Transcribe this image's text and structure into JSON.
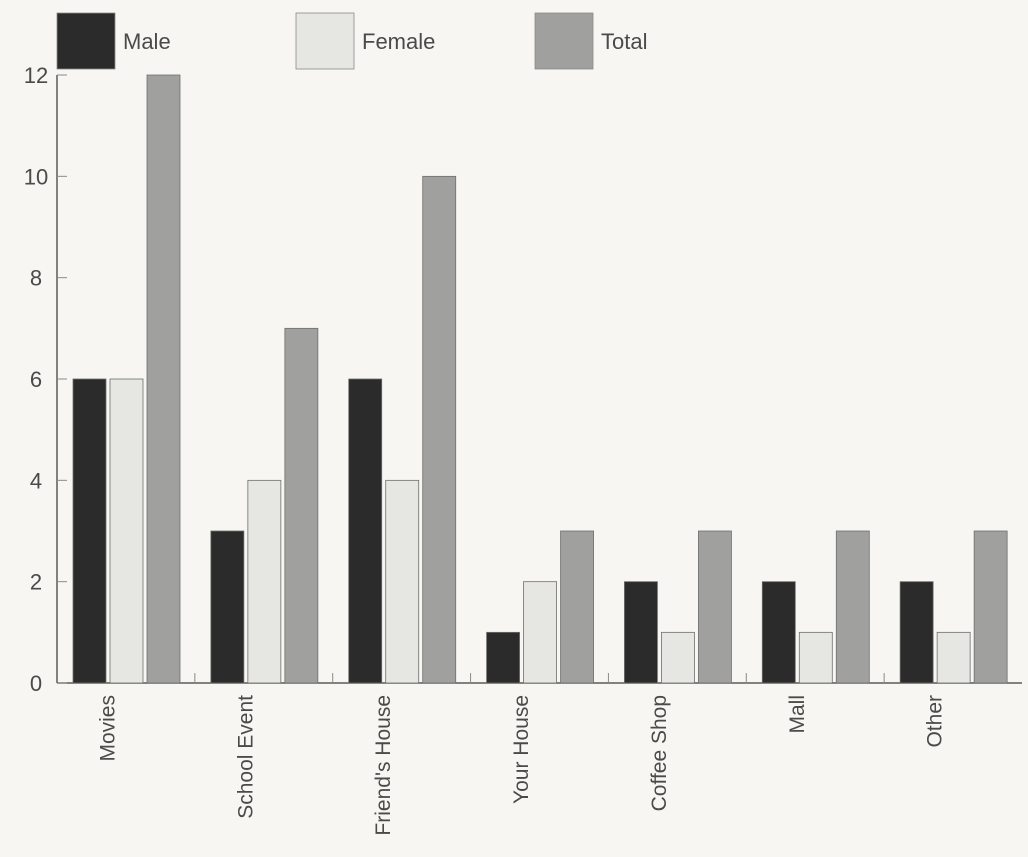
{
  "chart_data": {
    "type": "bar",
    "categories": [
      "Movies",
      "School Event",
      "Friend's House",
      "Your House",
      "Coffee Shop",
      "Mall",
      "Other"
    ],
    "series": [
      {
        "name": "Male",
        "values": [
          6,
          3,
          6,
          1,
          2,
          2,
          2
        ],
        "color": "#2b2b2b"
      },
      {
        "name": "Female",
        "values": [
          6,
          4,
          4,
          2,
          1,
          1,
          1
        ],
        "color": "#e6e6e2"
      },
      {
        "name": "Total",
        "values": [
          12,
          7,
          10,
          3,
          3,
          3,
          3
        ],
        "color": "#a0a09e"
      }
    ],
    "yticks": [
      "0",
      "2",
      "4",
      "6",
      "8",
      "10",
      "12"
    ],
    "ylim": [
      0,
      12
    ],
    "legend_position": "top",
    "grid": false,
    "title": "",
    "xlabel": "",
    "ylabel": ""
  }
}
